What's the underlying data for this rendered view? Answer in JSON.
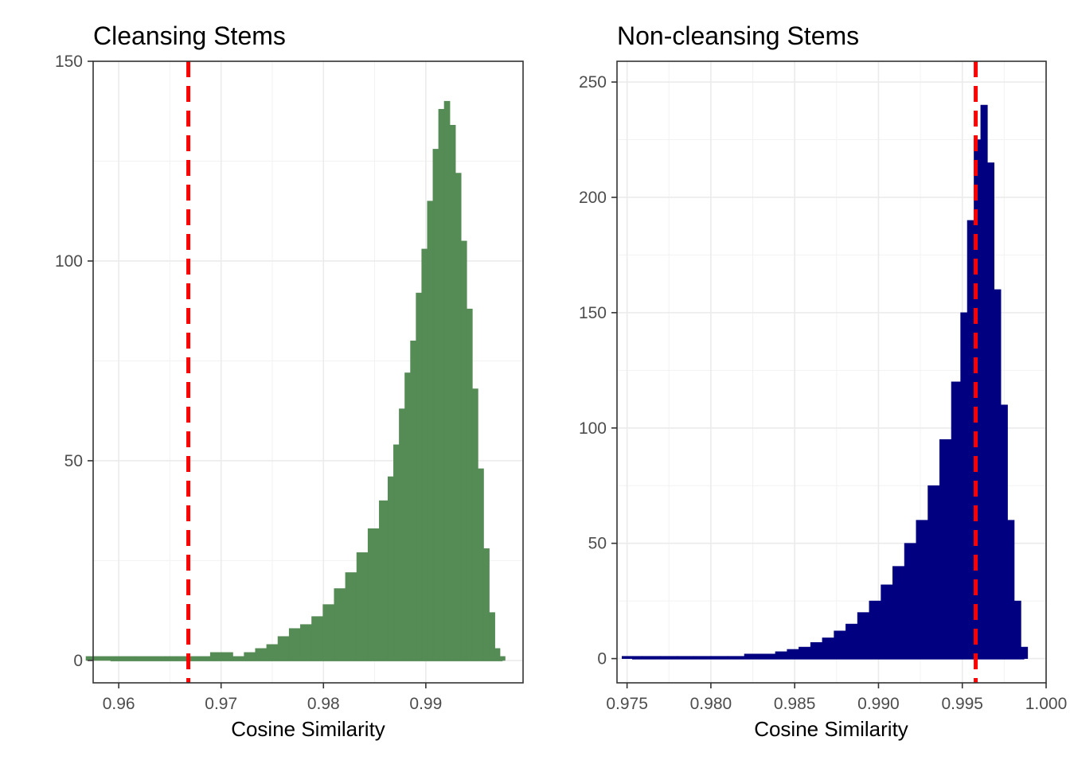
{
  "chart_data": [
    {
      "type": "bar",
      "title": "Cleansing Stems",
      "xlabel": "Cosine Similarity",
      "ylabel": "",
      "xlim": [
        0.9575,
        0.9995
      ],
      "ylim": [
        -5.6,
        150
      ],
      "xticks": [
        0.96,
        0.97,
        0.98,
        0.99
      ],
      "xtick_labels": [
        "0.96",
        "0.97",
        "0.98",
        "0.99"
      ],
      "yticks": [
        0,
        50,
        100,
        150
      ],
      "ytick_labels": [
        "0",
        "50",
        "100",
        "150"
      ],
      "bar_color": "#558B55",
      "reference_line": {
        "x": 0.9668,
        "color": "#FF0000",
        "style": "dashed"
      },
      "grid": true,
      "x": [
        0.9592,
        0.964,
        0.9651,
        0.9662,
        0.9673,
        0.9684,
        0.9695,
        0.9706,
        0.9717,
        0.9728,
        0.9739,
        0.975,
        0.9761,
        0.9772,
        0.9783,
        0.9794,
        0.9805,
        0.9816,
        0.9827,
        0.9838,
        0.9849,
        0.986,
        0.9866,
        0.9871,
        0.9877,
        0.9882,
        0.9888,
        0.9893,
        0.9899,
        0.9904,
        0.991,
        0.9915,
        0.9921,
        0.9926,
        0.9932,
        0.9937,
        0.9943,
        0.9948,
        0.9954,
        0.9959,
        0.9965,
        0.997,
        0.9975
      ],
      "values": [
        1,
        1,
        1,
        1,
        1,
        1,
        2,
        2,
        1,
        2,
        3,
        4,
        6,
        8,
        9,
        11,
        14,
        18,
        22,
        27,
        33,
        40,
        46,
        54,
        63,
        72,
        80,
        92,
        103,
        115,
        128,
        138,
        140,
        134,
        122,
        105,
        88,
        68,
        48,
        28,
        12,
        3,
        1
      ]
    },
    {
      "type": "bar",
      "title": "Non-cleansing Stems",
      "xlabel": "Cosine Similarity",
      "ylabel": "",
      "xlim": [
        0.9744,
        1.0
      ],
      "ylim": [
        -10.5,
        259
      ],
      "xticks": [
        0.975,
        0.98,
        0.985,
        0.99,
        0.995,
        1.0
      ],
      "xtick_labels": [
        "0.975",
        "0.980",
        "0.985",
        "0.990",
        "0.995",
        "1.000"
      ],
      "yticks": [
        0,
        50,
        100,
        150,
        200,
        250
      ],
      "ytick_labels": [
        "0",
        "50",
        "100",
        "150",
        "200",
        "250"
      ],
      "bar_color": "#000080",
      "reference_line": {
        "x": 0.9958,
        "color": "#FF0000",
        "style": "dashed"
      },
      "grid": true,
      "x": [
        0.9753,
        0.9765,
        0.9775,
        0.9785,
        0.9795,
        0.9805,
        0.9815,
        0.9825,
        0.9835,
        0.9842,
        0.9849,
        0.9856,
        0.9863,
        0.987,
        0.9877,
        0.9884,
        0.9891,
        0.9898,
        0.9905,
        0.9912,
        0.9919,
        0.9926,
        0.9933,
        0.994,
        0.9947,
        0.9951,
        0.9955,
        0.9959,
        0.9963,
        0.9967,
        0.9971,
        0.9975,
        0.9979,
        0.9983,
        0.9987
      ],
      "values": [
        1,
        1,
        1,
        1,
        1,
        1,
        1,
        2,
        2,
        3,
        4,
        5,
        7,
        9,
        12,
        15,
        20,
        25,
        32,
        40,
        50,
        60,
        75,
        95,
        120,
        150,
        190,
        225,
        240,
        215,
        160,
        110,
        60,
        25,
        5
      ]
    }
  ]
}
